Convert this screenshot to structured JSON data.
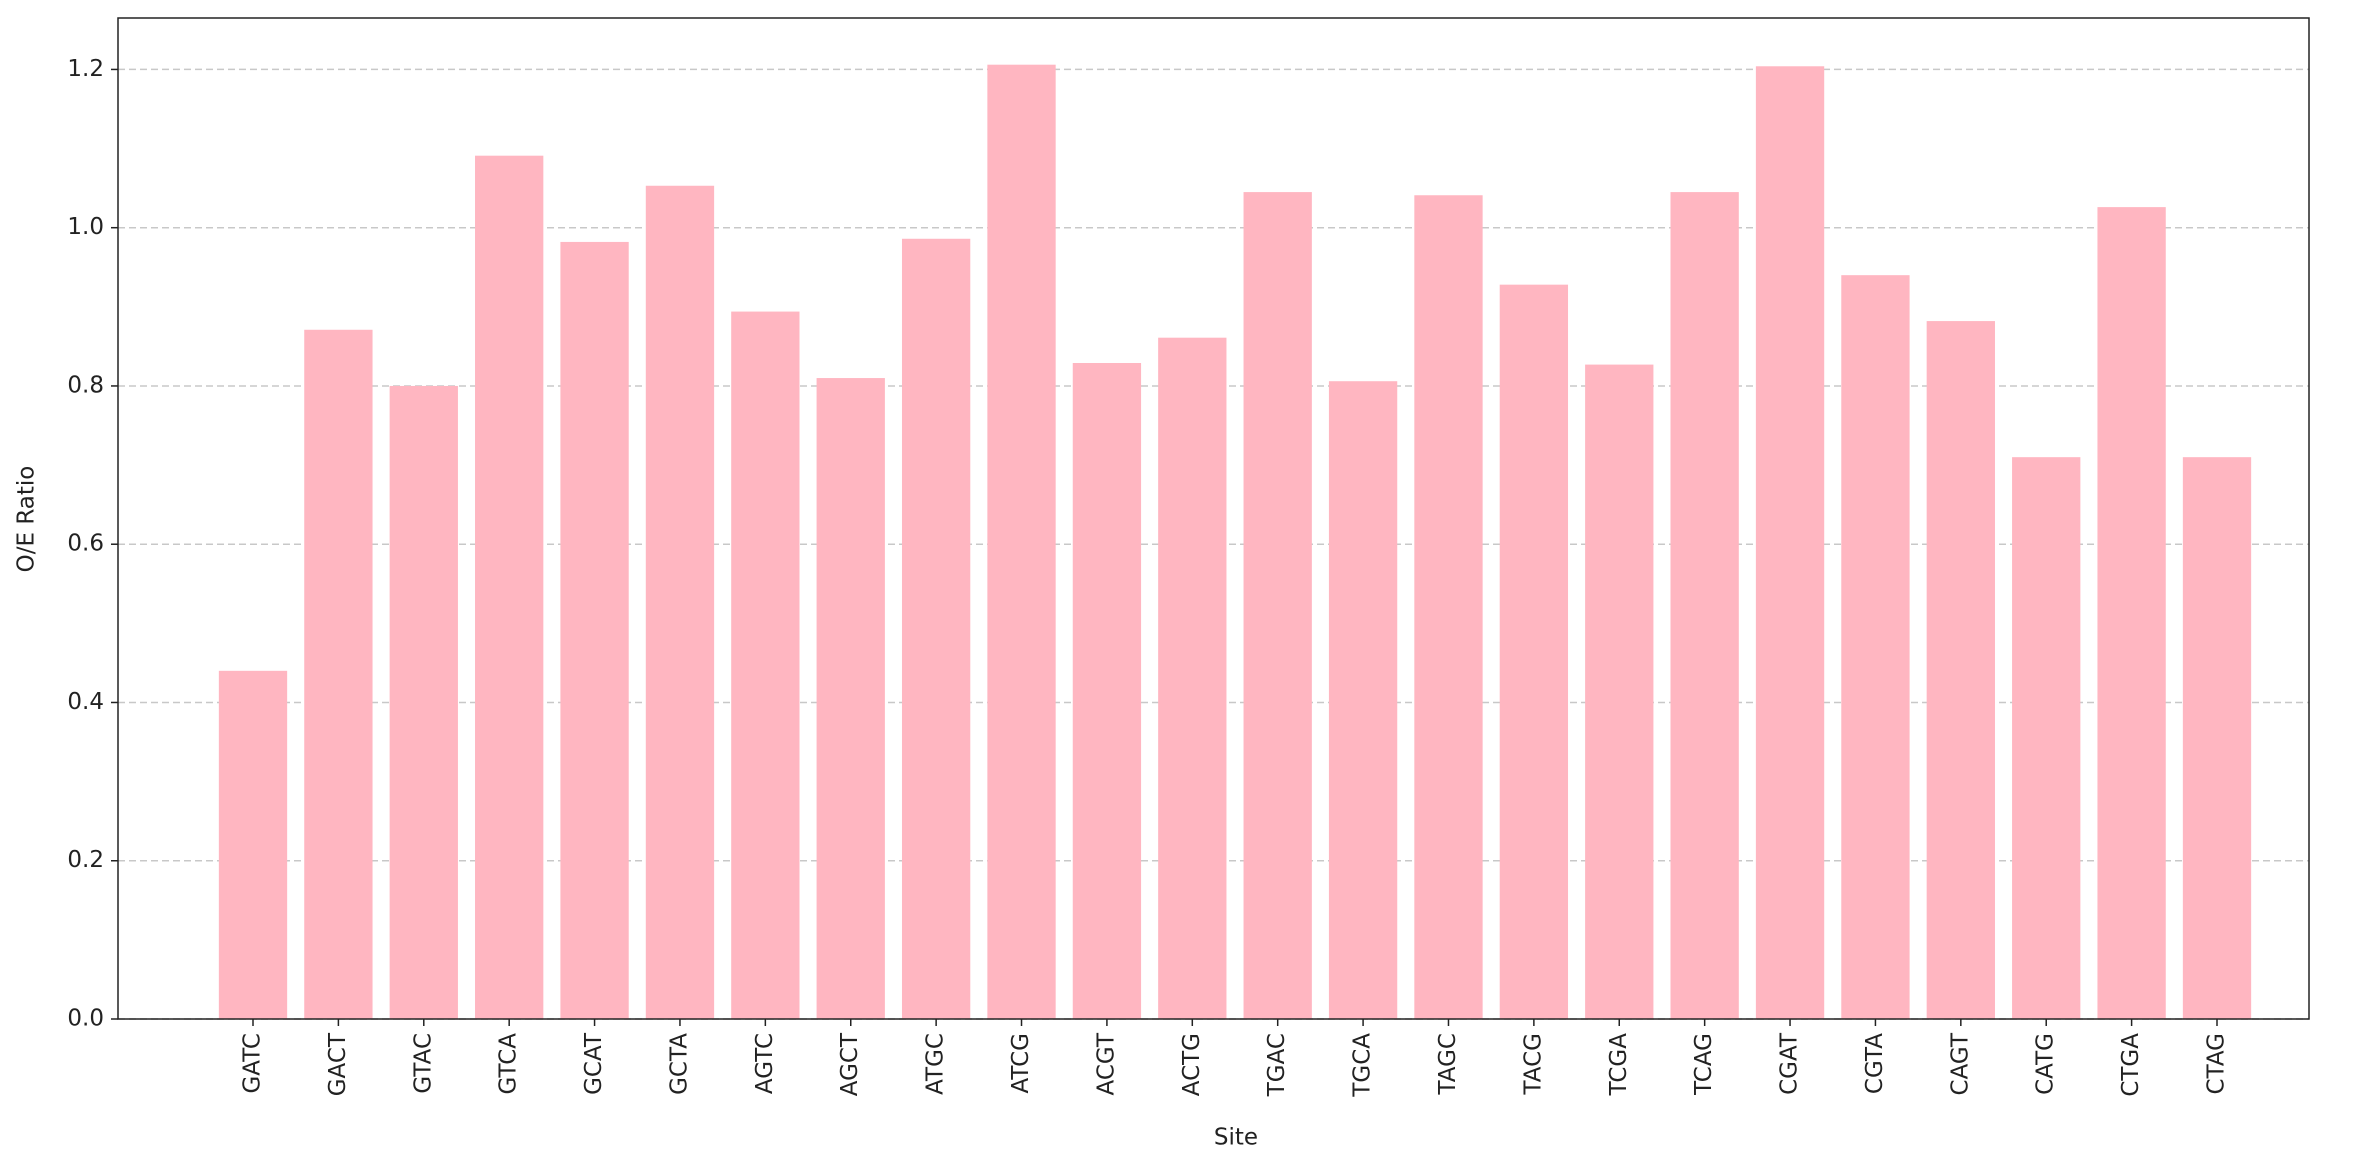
{
  "chart_data": {
    "type": "bar",
    "x_label": "Site",
    "y_label": "O/E Ratio",
    "categories": [
      "GATC",
      "GACT",
      "GTAC",
      "GTCA",
      "GCAT",
      "GCTA",
      "AGTC",
      "AGCT",
      "ATGC",
      "ATCG",
      "ACGT",
      "ACTG",
      "TGAC",
      "TGCA",
      "TAGC",
      "TACG",
      "TCGA",
      "TCAG",
      "CGAT",
      "CGTA",
      "CAGT",
      "CATG",
      "CTGA",
      "CTAG"
    ],
    "values": [
      0.44,
      0.871,
      0.8,
      1.091,
      0.982,
      1.053,
      0.894,
      0.81,
      0.986,
      1.206,
      0.829,
      0.861,
      1.045,
      0.806,
      1.041,
      0.928,
      0.827,
      1.045,
      1.204,
      0.94,
      0.882,
      0.71,
      1.026,
      0.71
    ],
    "color": "#ffb6c1",
    "ylim": [
      0,
      1.265
    ],
    "yticks": [
      {
        "value": 0,
        "label": "0.0"
      },
      0.2,
      0.4,
      0.6,
      0.8,
      {
        "value": 1,
        "label": "1.0"
      },
      1.2
    ],
    "grid": true
  }
}
